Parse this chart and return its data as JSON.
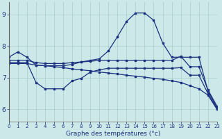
{
  "title": "Graphe des températures (°c)",
  "bg_color": "#cce8e8",
  "line_color": "#1a3080",
  "grid_color": "#a8cccc",
  "xlim": [
    0,
    23
  ],
  "ylim": [
    5.6,
    9.4
  ],
  "yticks": [
    6,
    7,
    8,
    9
  ],
  "xticks": [
    0,
    1,
    2,
    3,
    4,
    5,
    6,
    7,
    8,
    9,
    10,
    11,
    12,
    13,
    14,
    15,
    16,
    17,
    18,
    19,
    20,
    21,
    22,
    23
  ],
  "lines": [
    {
      "x": [
        0,
        1,
        2,
        3,
        4,
        5,
        6,
        7,
        8,
        9,
        10,
        11,
        12,
        13,
        14,
        15,
        16,
        17,
        18,
        19,
        20,
        21,
        22,
        23
      ],
      "y": [
        7.65,
        7.82,
        7.65,
        7.4,
        7.38,
        7.38,
        7.38,
        7.42,
        7.5,
        7.55,
        7.6,
        7.85,
        8.3,
        8.78,
        9.05,
        9.05,
        8.82,
        8.1,
        7.65,
        7.65,
        7.65,
        7.65,
        6.58,
        6.05
      ]
    },
    {
      "x": [
        0,
        1,
        2,
        3,
        4,
        5,
        6,
        7,
        8,
        9,
        10,
        11,
        12,
        13,
        14,
        15,
        16,
        17,
        18,
        19,
        20,
        21,
        22,
        23
      ],
      "y": [
        7.55,
        7.55,
        7.55,
        7.48,
        7.45,
        7.45,
        7.45,
        7.48,
        7.5,
        7.52,
        7.55,
        7.55,
        7.55,
        7.55,
        7.55,
        7.55,
        7.55,
        7.55,
        7.55,
        7.68,
        7.35,
        7.35,
        6.62,
        6.1
      ]
    },
    {
      "x": [
        0,
        1,
        2,
        3,
        4,
        5,
        6,
        7,
        8,
        9,
        10,
        11,
        12,
        13,
        14,
        15,
        16,
        17,
        18,
        19,
        20,
        21,
        22,
        23
      ],
      "y": [
        7.48,
        7.48,
        7.48,
        6.85,
        6.65,
        6.65,
        6.65,
        6.9,
        6.98,
        7.18,
        7.25,
        7.3,
        7.3,
        7.3,
        7.3,
        7.3,
        7.3,
        7.3,
        7.3,
        7.32,
        7.08,
        7.08,
        6.5,
        6.02
      ]
    },
    {
      "x": [
        0,
        1,
        2,
        3,
        4,
        5,
        6,
        7,
        8,
        9,
        10,
        11,
        12,
        13,
        14,
        15,
        16,
        17,
        18,
        19,
        20,
        21,
        22,
        23
      ],
      "y": [
        7.45,
        7.45,
        7.45,
        7.4,
        7.38,
        7.35,
        7.32,
        7.28,
        7.25,
        7.22,
        7.18,
        7.15,
        7.12,
        7.08,
        7.05,
        7.02,
        6.98,
        6.95,
        6.9,
        6.85,
        6.75,
        6.65,
        6.45,
        6.0
      ]
    }
  ]
}
